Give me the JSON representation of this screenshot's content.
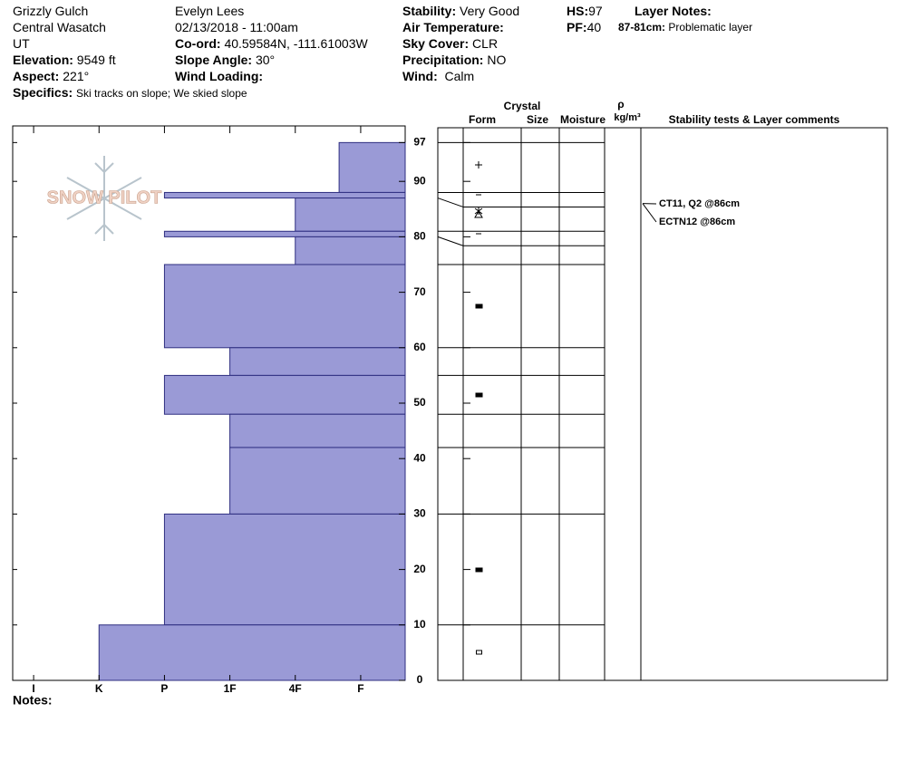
{
  "header": {
    "site": [
      "Grizzly Gulch",
      "Central Wasatch",
      "UT"
    ],
    "elevation": {
      "label": "Elevation:",
      "value": "9549 ft"
    },
    "aspect": {
      "label": "Aspect:",
      "value": "221°"
    },
    "specifics": {
      "label": "Specifics:",
      "value": "Ski tracks on slope; We skied slope"
    },
    "observer": "Evelyn Lees",
    "datetime": "02/13/2018 - 11:00am",
    "coord": {
      "label": "Co-ord:",
      "value": "40.59584N, -111.61003W"
    },
    "slope_angle": {
      "label": "Slope Angle:",
      "value": "30°"
    },
    "wind_loading": {
      "label": "Wind Loading:"
    },
    "stability": {
      "label": "Stability:",
      "value": "Very Good"
    },
    "air_temperature": {
      "label": "Air Temperature:"
    },
    "sky_cover": {
      "label": "Sky Cover:",
      "value": "CLR"
    },
    "precipitation": {
      "label": "Precipitation:",
      "value": "NO"
    },
    "wind": {
      "label": "Wind:",
      "value": "Calm"
    },
    "hs": {
      "label": "HS:",
      "value": "97"
    },
    "pf": {
      "label": "PF:",
      "value": "40"
    },
    "layer_notes": {
      "label": "Layer Notes:",
      "range": "87-81cm:",
      "text": "Problematic layer"
    },
    "logo": "SNOW PILOT"
  },
  "chart_data": {
    "type": "hardness-profile",
    "color": "#9a9ad6",
    "ylim": [
      0,
      100
    ],
    "yticks": [
      0,
      10,
      20,
      30,
      40,
      50,
      60,
      70,
      80,
      90,
      97
    ],
    "xlim": [
      6.32,
      0.32
    ],
    "xticks": [
      {
        "value": 6,
        "label": "I"
      },
      {
        "value": 5,
        "label": "K"
      },
      {
        "value": 4,
        "label": "P"
      },
      {
        "value": 3,
        "label": "1F"
      },
      {
        "value": 2,
        "label": "4F"
      },
      {
        "value": 1,
        "label": "F"
      }
    ],
    "layers": [
      {
        "top": 97,
        "bottom": 88,
        "hardness": 1.33
      },
      {
        "top": 88,
        "bottom": 87,
        "hardness": 4
      },
      {
        "top": 87,
        "bottom": 81,
        "hardness": 2
      },
      {
        "top": 81,
        "bottom": 80,
        "hardness": 4
      },
      {
        "top": 80,
        "bottom": 75,
        "hardness": 2
      },
      {
        "top": 75,
        "bottom": 60,
        "hardness": 4
      },
      {
        "top": 60,
        "bottom": 55,
        "hardness": 3
      },
      {
        "top": 55,
        "bottom": 48,
        "hardness": 4
      },
      {
        "top": 48,
        "bottom": 42,
        "hardness": 3
      },
      {
        "top": 42,
        "bottom": 30,
        "hardness": 3
      },
      {
        "top": 30,
        "bottom": 10,
        "hardness": 4
      },
      {
        "top": 10,
        "bottom": 0,
        "hardness": 5
      }
    ],
    "columns": {
      "crystal": "Crystal",
      "form": "Form",
      "size": "Size",
      "moisture": "Moisture",
      "rho": "ρ",
      "density": "kg/m³",
      "comments": "Stability tests & Layer comments"
    },
    "tests": [
      {
        "text": "CT11, Q2 @86cm",
        "depth": 86
      },
      {
        "text": "ECTN12 @86cm",
        "depth": 86
      }
    ],
    "notes": "Notes:"
  }
}
